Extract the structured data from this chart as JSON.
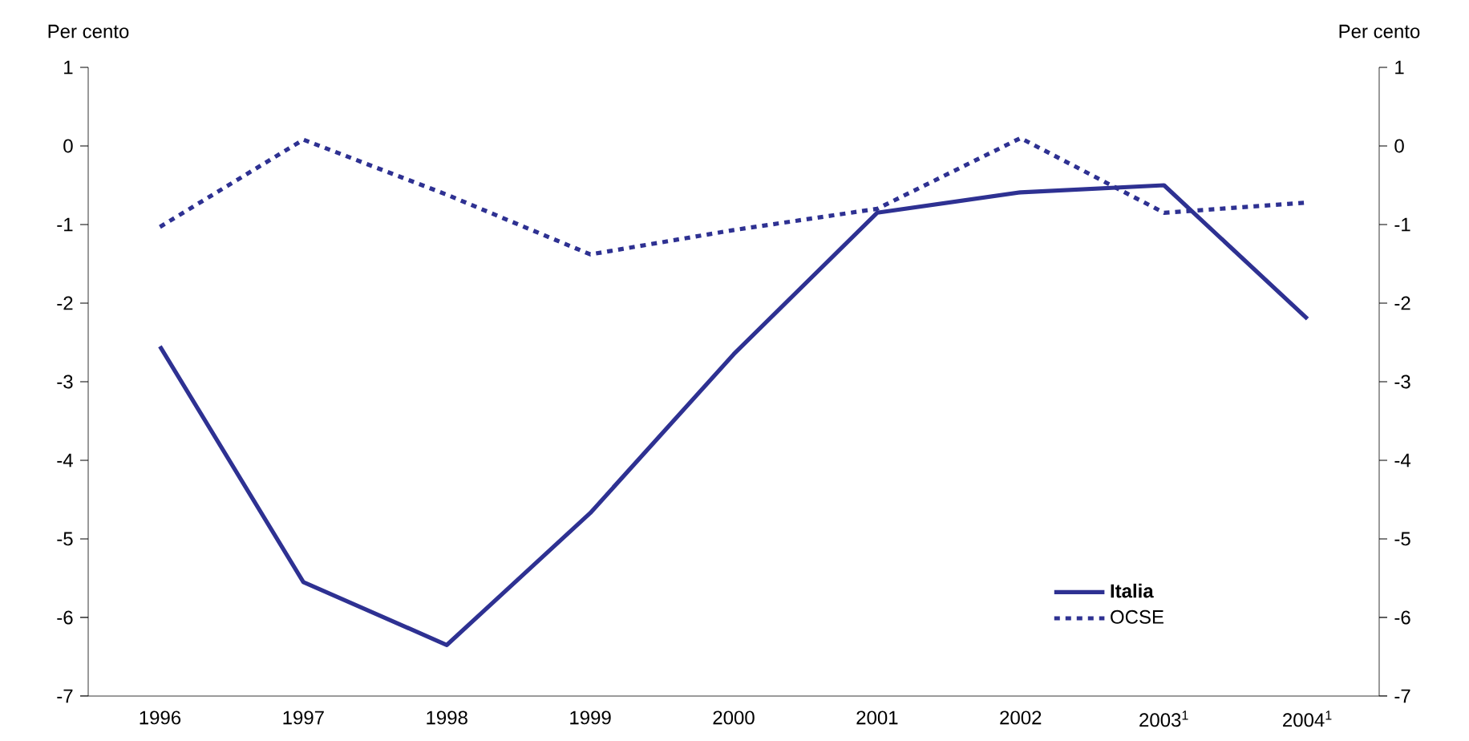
{
  "chart_data": {
    "type": "line",
    "ylabel": "Per cento",
    "y2label": "Per cento",
    "categories": [
      "1996",
      "1997",
      "1998",
      "1999",
      "2000",
      "2001",
      "2002",
      "2003$^{1}$",
      "2004$^{1}$"
    ],
    "series": [
      {
        "name": "**Italia**",
        "color": "#2e3192",
        "line_style": "solid",
        "values": [
          -2.55,
          -5.55,
          -6.35,
          -4.67,
          -2.65,
          -0.85,
          -0.59,
          -0.5,
          -2.2
        ]
      },
      {
        "name": "OCSE",
        "color": "#2e3192",
        "line_style": "dotted",
        "values": [
          -1.03,
          0.08,
          -0.62,
          -1.38,
          -1.07,
          -0.8,
          0.1,
          -0.85,
          -0.72
        ]
      }
    ],
    "ylim": [
      -7,
      1
    ],
    "yticks": [
      -7,
      -6,
      -5,
      -4,
      -3,
      -2,
      -1,
      0,
      1
    ],
    "y2lim": [
      -7,
      1
    ],
    "y2ticks": [
      -7,
      -6,
      -5,
      -4,
      -3,
      -2,
      -1,
      0,
      1
    ],
    "grid": false,
    "legend": "bottom right",
    "marker": "none"
  }
}
